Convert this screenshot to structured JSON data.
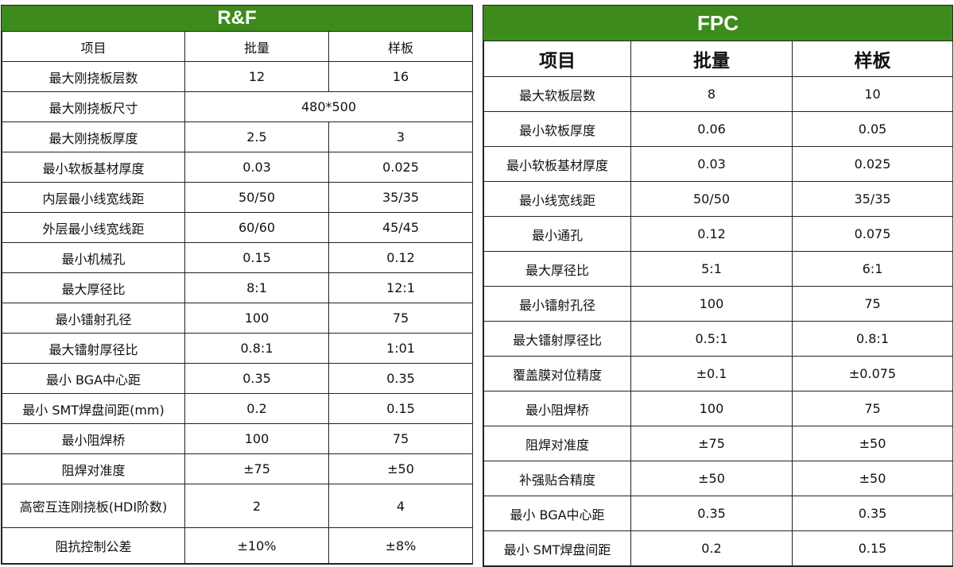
{
  "rf": {
    "title": "R&F",
    "headers": [
      "项目",
      "批量",
      "样板"
    ],
    "rows": [
      [
        "最大刚挠板层数",
        "12",
        "16"
      ],
      [
        "最大刚挠板尺寸",
        "480*500"
      ],
      [
        "最大刚挠板厚度",
        "2.5",
        "3"
      ],
      [
        "最小软板基材厚度",
        "0.03",
        "0.025"
      ],
      [
        "内层最小线宽线距",
        "50/50",
        "35/35"
      ],
      [
        "外层最小线宽线距",
        "60/60",
        "45/45"
      ],
      [
        "最小机械孔",
        "0.15",
        "0.12"
      ],
      [
        "最大厚径比",
        "8:1",
        "12:1"
      ],
      [
        "最小镭射孔径",
        "100",
        "75"
      ],
      [
        "最大镭射厚径比",
        "0.8:1",
        "1:01"
      ],
      [
        "最小 BGA中心距",
        "0.35",
        "0.35"
      ],
      [
        "最小 SMT焊盘间距(mm)",
        "0.2",
        "0.15"
      ],
      [
        "最小阻焊桥",
        "100",
        "75"
      ],
      [
        "阻焊对准度",
        "±75",
        "±50"
      ],
      [
        "高密互连刚挠板(HDI阶数)",
        "2",
        "4"
      ],
      [
        "阻抗控制公差",
        "±10%",
        "±8%"
      ]
    ]
  },
  "fpc": {
    "title": "FPC",
    "headers": [
      "项目",
      "批量",
      "样板"
    ],
    "rows": [
      [
        "最大软板层数",
        "8",
        "10"
      ],
      [
        "最小软板厚度",
        "0.06",
        "0.05"
      ],
      [
        "最小软板基材厚度",
        "0.03",
        "0.025"
      ],
      [
        "最小线宽线距",
        "50/50",
        "35/35"
      ],
      [
        "最小通孔",
        "0.12",
        "0.075"
      ],
      [
        "最大厚径比",
        "5:1",
        "6:1"
      ],
      [
        "最小镭射孔径",
        "100",
        "75"
      ],
      [
        "最大镭射厚径比",
        "0.5:1",
        "0.8:1"
      ],
      [
        "覆盖膜对位精度",
        "±0.1",
        "±0.075"
      ],
      [
        "最小阻焊桥",
        "100",
        "75"
      ],
      [
        "阻焊对准度",
        "±75",
        "±50"
      ],
      [
        "补强贴合精度",
        "±50",
        "±50"
      ],
      [
        "最小 BGA中心距",
        "0.35",
        "0.35"
      ],
      [
        "最小 SMT焊盘间距",
        "0.2",
        "0.15"
      ]
    ]
  },
  "colors": {
    "banner": "#3e8b1d",
    "border": "#222222"
  }
}
